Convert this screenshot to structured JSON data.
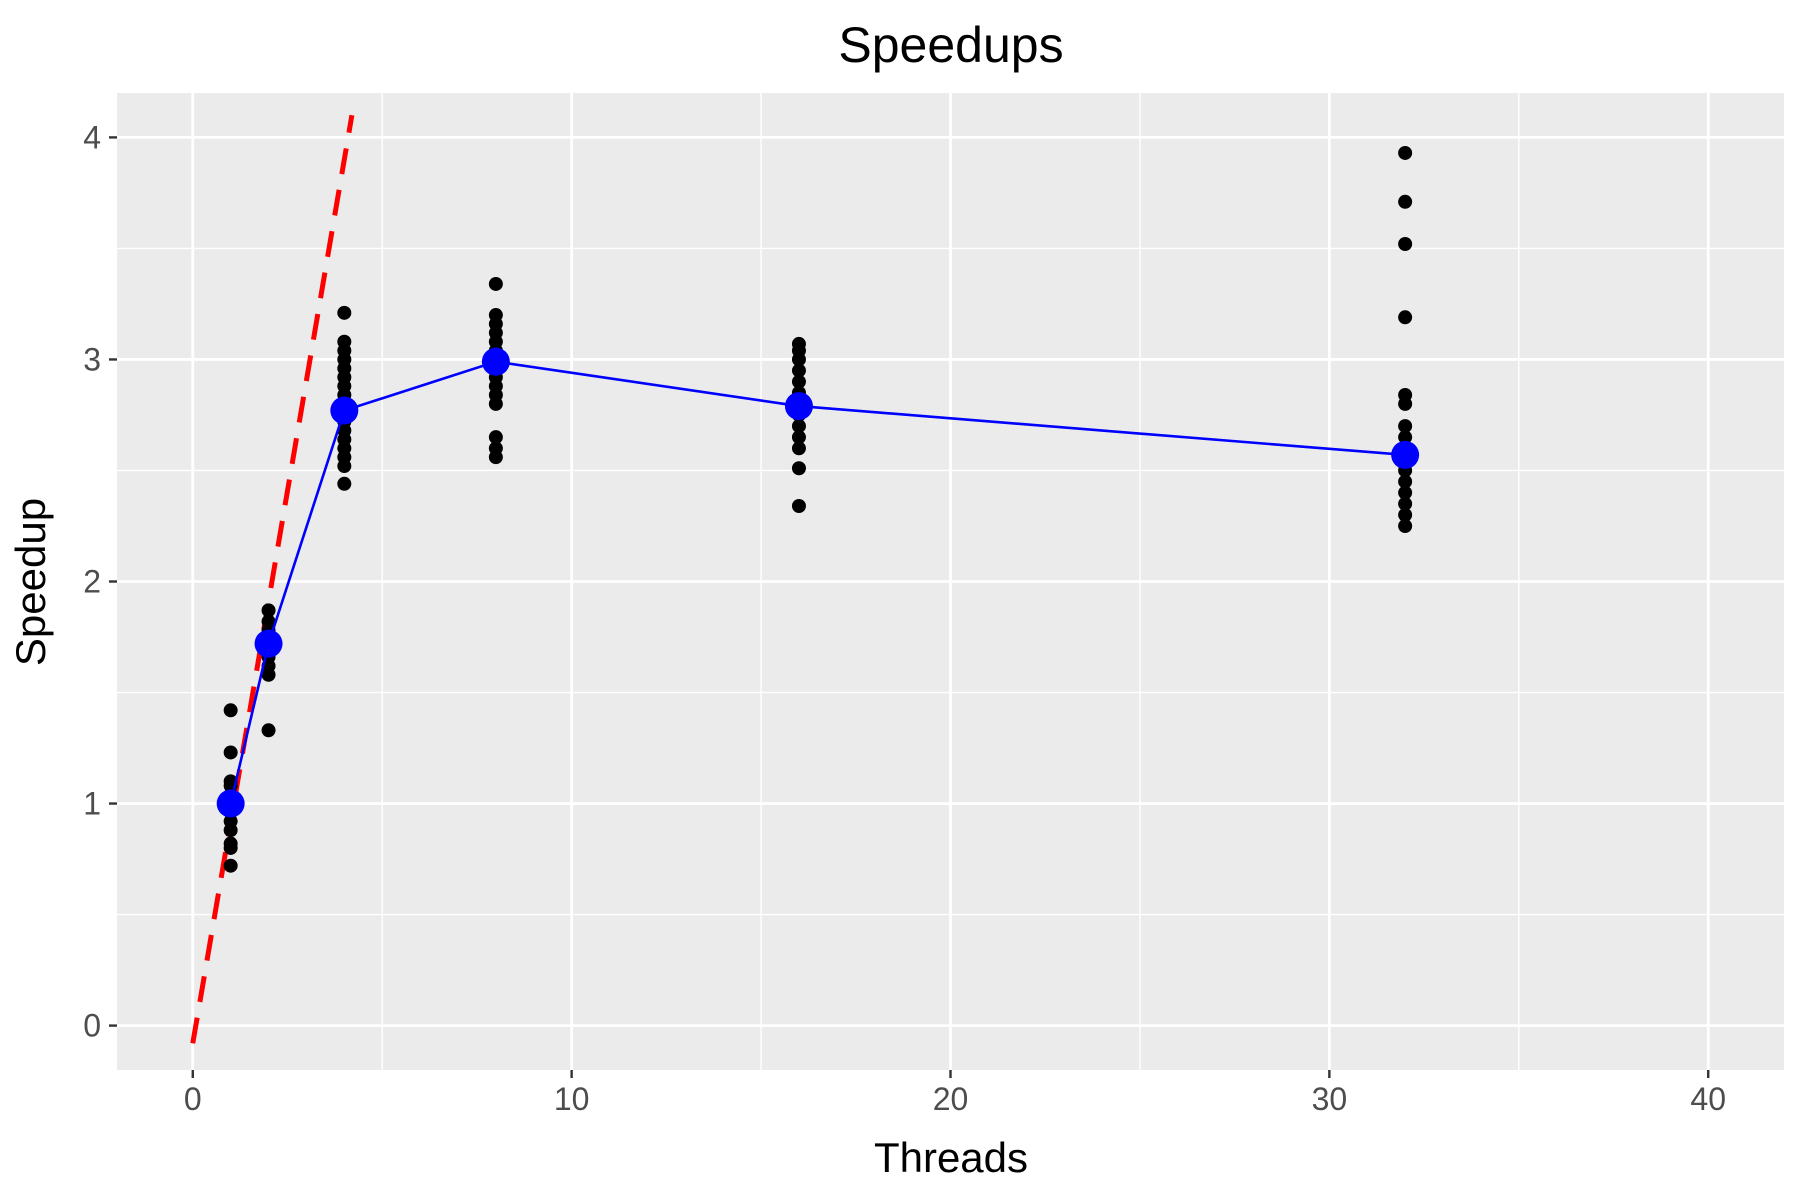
{
  "chart_data": {
    "type": "scatter",
    "title": "Speedups",
    "xlabel": "Threads",
    "ylabel": "Speedup",
    "xlim": [
      -2,
      42
    ],
    "ylim": [
      -0.2,
      4.2
    ],
    "x_ticks": [
      0,
      10,
      20,
      30,
      40
    ],
    "y_ticks": [
      0,
      1,
      2,
      3,
      4
    ],
    "grid": true,
    "legend": "none",
    "colors": {
      "panel_background": "#ebebeb",
      "grid": "#ffffff",
      "points": "#000000",
      "mean": "#0000ff",
      "ideal": "#ff0000"
    },
    "series": [
      {
        "kind": "raw-points",
        "points": [
          [
            1,
            0.72
          ],
          [
            1,
            0.8
          ],
          [
            1,
            0.82
          ],
          [
            1,
            0.88
          ],
          [
            1,
            0.92
          ],
          [
            1,
            0.96
          ],
          [
            1,
            1.0
          ],
          [
            1,
            1.04
          ],
          [
            1,
            1.08
          ],
          [
            1,
            1.1
          ],
          [
            1,
            1.23
          ],
          [
            1,
            1.42
          ],
          [
            2,
            1.33
          ],
          [
            2,
            1.58
          ],
          [
            2,
            1.62
          ],
          [
            2,
            1.66
          ],
          [
            2,
            1.7
          ],
          [
            2,
            1.74
          ],
          [
            2,
            1.78
          ],
          [
            2,
            1.82
          ],
          [
            2,
            1.87
          ],
          [
            4,
            2.44
          ],
          [
            4,
            2.52
          ],
          [
            4,
            2.56
          ],
          [
            4,
            2.6
          ],
          [
            4,
            2.64
          ],
          [
            4,
            2.68
          ],
          [
            4,
            2.72
          ],
          [
            4,
            2.76
          ],
          [
            4,
            2.8
          ],
          [
            4,
            2.84
          ],
          [
            4,
            2.88
          ],
          [
            4,
            2.92
          ],
          [
            4,
            2.96
          ],
          [
            4,
            3.0
          ],
          [
            4,
            3.04
          ],
          [
            4,
            3.08
          ],
          [
            4,
            3.21
          ],
          [
            8,
            2.56
          ],
          [
            8,
            2.6
          ],
          [
            8,
            2.65
          ],
          [
            8,
            2.8
          ],
          [
            8,
            2.84
          ],
          [
            8,
            2.88
          ],
          [
            8,
            2.92
          ],
          [
            8,
            2.96
          ],
          [
            8,
            3.0
          ],
          [
            8,
            3.04
          ],
          [
            8,
            3.08
          ],
          [
            8,
            3.12
          ],
          [
            8,
            3.16
          ],
          [
            8,
            3.2
          ],
          [
            8,
            3.34
          ],
          [
            16,
            2.34
          ],
          [
            16,
            2.51
          ],
          [
            16,
            2.6
          ],
          [
            16,
            2.65
          ],
          [
            16,
            2.7
          ],
          [
            16,
            2.75
          ],
          [
            16,
            2.8
          ],
          [
            16,
            2.85
          ],
          [
            16,
            2.9
          ],
          [
            16,
            2.95
          ],
          [
            16,
            3.0
          ],
          [
            16,
            3.04
          ],
          [
            16,
            3.07
          ],
          [
            32,
            2.25
          ],
          [
            32,
            2.3
          ],
          [
            32,
            2.35
          ],
          [
            32,
            2.4
          ],
          [
            32,
            2.45
          ],
          [
            32,
            2.5
          ],
          [
            32,
            2.55
          ],
          [
            32,
            2.6
          ],
          [
            32,
            2.65
          ],
          [
            32,
            2.7
          ],
          [
            32,
            2.8
          ],
          [
            32,
            2.84
          ],
          [
            32,
            3.19
          ],
          [
            32,
            3.52
          ],
          [
            32,
            3.71
          ],
          [
            32,
            3.93
          ]
        ]
      },
      {
        "kind": "mean",
        "x": [
          1,
          2,
          4,
          8,
          16,
          32
        ],
        "y": [
          1.0,
          1.72,
          2.77,
          2.99,
          2.79,
          2.57
        ]
      },
      {
        "kind": "ideal",
        "x": [
          0,
          4.2
        ],
        "y": [
          -0.08,
          4.1
        ]
      }
    ]
  }
}
